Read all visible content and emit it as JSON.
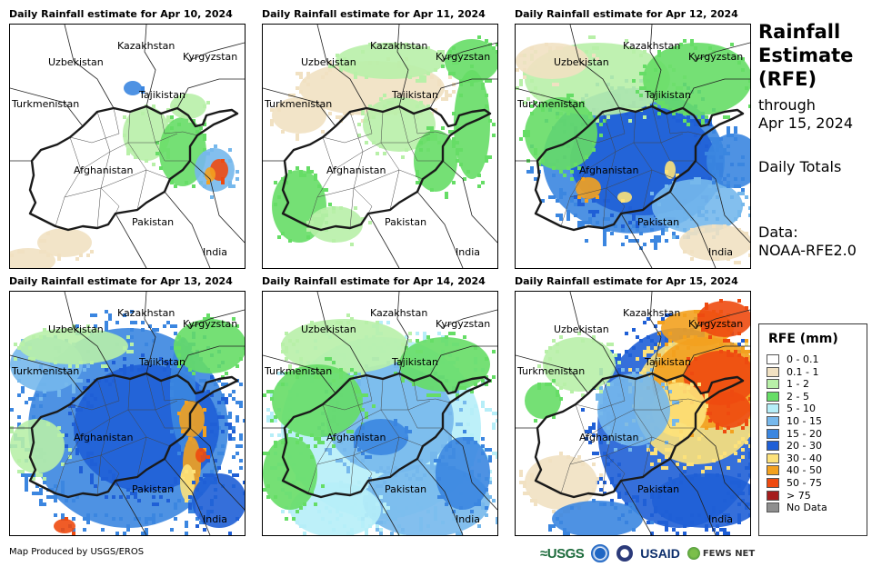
{
  "panels": [
    {
      "title": "Daily Rainfall estimate for Apr 10, 2024",
      "pattern": "light"
    },
    {
      "title": "Daily Rainfall estimate for Apr 11, 2024",
      "pattern": "lightgreen"
    },
    {
      "title": "Daily Rainfall estimate for Apr 12, 2024",
      "pattern": "blue"
    },
    {
      "title": "Daily Rainfall estimate for Apr 13, 2024",
      "pattern": "blue2"
    },
    {
      "title": "Daily Rainfall estimate for Apr 14, 2024",
      "pattern": "mixed"
    },
    {
      "title": "Daily Rainfall estimate for Apr 15, 2024",
      "pattern": "heavy"
    }
  ],
  "map_labels": {
    "kazakhstan": "Kazakhstan",
    "kyrgyzstan": "Kyrgyzstan",
    "uzbekistan": "Uzbekistan",
    "tajikistan": "Tajikistan",
    "turkmenistan": "Turkmenistan",
    "afghanistan": "Afghanistan",
    "pakistan": "Pakistan",
    "india": "India"
  },
  "side": {
    "title_line1": "Rainfall",
    "title_line2": "Estimate",
    "title_line3": "(RFE)",
    "through_label": "through",
    "through_date": "Apr 15, 2024",
    "totals": "Daily Totals",
    "data_label": "Data:",
    "data_source": "NOAA-RFE2.0"
  },
  "legend": {
    "title": "RFE (mm)",
    "items": [
      {
        "label": "0 - 0.1",
        "color": "#ffffff"
      },
      {
        "label": "0.1 - 1",
        "color": "#f1e1c2"
      },
      {
        "label": "1 - 2",
        "color": "#b8f0a8"
      },
      {
        "label": "2 - 5",
        "color": "#66dd66"
      },
      {
        "label": "5 - 10",
        "color": "#b6eef8"
      },
      {
        "label": "10 - 15",
        "color": "#76b8ec"
      },
      {
        "label": "15 - 20",
        "color": "#3b86e0"
      },
      {
        "label": "20 - 30",
        "color": "#1f5fd6"
      },
      {
        "label": "30 - 40",
        "color": "#fde27a"
      },
      {
        "label": "40 - 50",
        "color": "#f3a11f"
      },
      {
        "label": "50 - 75",
        "color": "#ee4a10"
      },
      {
        "label": "> 75",
        "color": "#a51d1d"
      },
      {
        "label": "No Data",
        "color": "#8e8e8e"
      }
    ]
  },
  "footer": {
    "credit": "Map Produced by USGS/EROS",
    "usgs": "≈USGS",
    "usaid": "USAID",
    "fews": "FEWS NET"
  }
}
